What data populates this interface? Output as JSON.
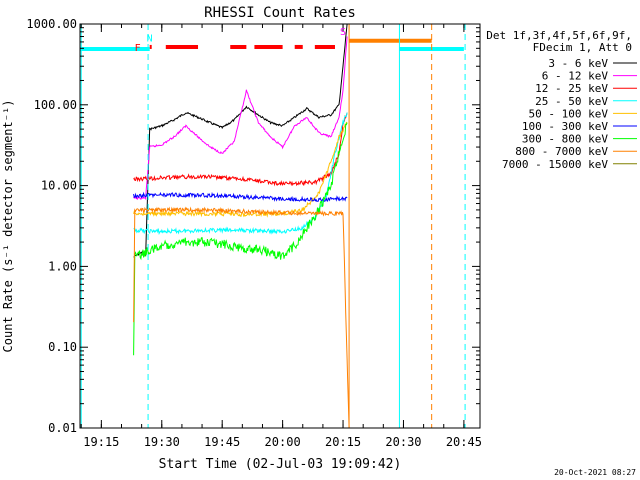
{
  "chart_data": {
    "type": "line",
    "title": "RHESSI Count Rates",
    "xlabel": "Start Time (02-Jul-03 19:09:42)",
    "ylabel": "Count Rate (s⁻¹ detector segment⁻¹)",
    "x_range": [
      "19:09:42",
      "20:49:00"
    ],
    "ylim": [
      0.01,
      1000
    ],
    "y_scale": "log",
    "x_tick_labels": [
      "19:15",
      "19:30",
      "19:45",
      "20:00",
      "20:15",
      "20:30",
      "20:45"
    ],
    "y_tick_labels": [
      "1000.00",
      "100.00",
      "10.00",
      "1.00",
      "0.10",
      "0.01"
    ],
    "y_tick_values": [
      1000,
      100,
      10,
      1,
      0.1,
      0.01
    ],
    "legend_header": [
      "Det 1f,3f,4f,5f,6f,9f,",
      "FDecim 1, Att 0"
    ],
    "legend_position": "right",
    "series": [
      {
        "name": "3 - 6 keV",
        "color": "#000000",
        "points": [
          [
            "19:23",
            1.3
          ],
          [
            "19:25",
            1.5
          ],
          [
            "19:26",
            1.4
          ],
          [
            "19:27",
            50
          ],
          [
            "19:30",
            55
          ],
          [
            "19:33",
            65
          ],
          [
            "19:36",
            80
          ],
          [
            "19:39",
            70
          ],
          [
            "19:42",
            60
          ],
          [
            "19:45",
            52
          ],
          [
            "19:48",
            65
          ],
          [
            "19:51",
            95
          ],
          [
            "19:54",
            75
          ],
          [
            "19:57",
            60
          ],
          [
            "20:00",
            55
          ],
          [
            "20:03",
            70
          ],
          [
            "20:06",
            90
          ],
          [
            "20:09",
            70
          ],
          [
            "20:12",
            75
          ],
          [
            "20:14",
            100
          ],
          [
            "20:15",
            300
          ],
          [
            "20:16",
            1000
          ]
        ]
      },
      {
        "name": "6 - 12 keV",
        "color": "#ff00ff",
        "points": [
          [
            "19:23",
            7
          ],
          [
            "19:26",
            7
          ],
          [
            "19:27",
            30
          ],
          [
            "19:30",
            32
          ],
          [
            "19:33",
            40
          ],
          [
            "19:36",
            55
          ],
          [
            "19:39",
            40
          ],
          [
            "19:42",
            30
          ],
          [
            "19:45",
            25
          ],
          [
            "19:48",
            35
          ],
          [
            "19:51",
            150
          ],
          [
            "19:54",
            60
          ],
          [
            "19:57",
            40
          ],
          [
            "20:00",
            30
          ],
          [
            "20:03",
            55
          ],
          [
            "20:06",
            70
          ],
          [
            "20:09",
            45
          ],
          [
            "20:12",
            40
          ],
          [
            "20:14",
            70
          ],
          [
            "20:15",
            150
          ],
          [
            "20:16",
            700
          ]
        ]
      },
      {
        "name": "12 - 25 keV",
        "color": "#ff0000",
        "points": [
          [
            "19:23",
            12
          ],
          [
            "19:30",
            12.5
          ],
          [
            "19:40",
            13
          ],
          [
            "19:50",
            12
          ],
          [
            "20:00",
            10.5
          ],
          [
            "20:08",
            11
          ],
          [
            "20:12",
            14
          ],
          [
            "20:14",
            25
          ],
          [
            "20:15",
            60
          ],
          [
            "20:16",
            80
          ]
        ]
      },
      {
        "name": "25 - 50 keV",
        "color": "#00ffff",
        "points": [
          [
            "19:23",
            2.8
          ],
          [
            "19:30",
            2.7
          ],
          [
            "19:40",
            2.8
          ],
          [
            "19:50",
            2.8
          ],
          [
            "20:00",
            2.7
          ],
          [
            "20:05",
            3
          ],
          [
            "20:08",
            4
          ],
          [
            "20:11",
            8
          ],
          [
            "20:13",
            25
          ],
          [
            "20:15",
            60
          ],
          [
            "20:16",
            80
          ]
        ]
      },
      {
        "name": "50 - 100 keV",
        "color": "#ffc000",
        "points": [
          [
            "19:23",
            4.5
          ],
          [
            "19:30",
            4.5
          ],
          [
            "19:40",
            4.5
          ],
          [
            "19:50",
            4.4
          ],
          [
            "20:00",
            4.5
          ],
          [
            "20:05",
            5
          ],
          [
            "20:09",
            8
          ],
          [
            "20:12",
            20
          ],
          [
            "20:14",
            40
          ],
          [
            "20:16",
            60
          ]
        ]
      },
      {
        "name": "100 - 300 keV",
        "color": "#0000ff",
        "points": [
          [
            "19:23",
            7.5
          ],
          [
            "19:30",
            7.7
          ],
          [
            "19:40",
            7.6
          ],
          [
            "19:50",
            7.3
          ],
          [
            "20:00",
            6.8
          ],
          [
            "20:10",
            6.7
          ],
          [
            "20:16",
            7
          ]
        ]
      },
      {
        "name": "300 - 800 keV",
        "color": "#00ff00",
        "points": [
          [
            "19:23",
            0.08
          ],
          [
            "19:23.3",
            1.3
          ],
          [
            "19:26",
            1.5
          ],
          [
            "19:30",
            1.8
          ],
          [
            "19:35",
            2
          ],
          [
            "19:40",
            2
          ],
          [
            "19:45",
            1.9
          ],
          [
            "19:50",
            1.7
          ],
          [
            "19:55",
            1.6
          ],
          [
            "20:00",
            1.3
          ],
          [
            "20:03",
            1.8
          ],
          [
            "20:06",
            3
          ],
          [
            "20:09",
            5
          ],
          [
            "20:12",
            10
          ],
          [
            "20:14",
            25
          ],
          [
            "20:16",
            60
          ]
        ]
      },
      {
        "name": "800 - 7000 keV",
        "color": "#ff8000",
        "points": [
          [
            "19:23",
            0.2
          ],
          [
            "19:23.3",
            5
          ],
          [
            "19:30",
            5
          ],
          [
            "19:40",
            5
          ],
          [
            "19:50",
            4.8
          ],
          [
            "20:00",
            4.6
          ],
          [
            "20:10",
            4.5
          ],
          [
            "20:15",
            4.5
          ],
          [
            "20:16",
            0.07
          ],
          [
            "20:16.5",
            0.01
          ]
        ]
      },
      {
        "name": "7000 - 15000 keV",
        "color": "#808000",
        "points": []
      }
    ],
    "annotations": [
      {
        "text": "F",
        "time": "19:24",
        "y": 520,
        "color": "#ff0000"
      },
      {
        "text": "N",
        "time": "19:27",
        "y": 680,
        "color": "#00ffff"
      },
      {
        "text": "S",
        "time": "20:15",
        "y": 820,
        "color": "#ff00ff"
      }
    ],
    "flag_bars": [
      {
        "kind": "flare",
        "color": "#ff0000",
        "y": 520,
        "segments": [
          [
            "19:27",
            "19:27.5"
          ],
          [
            "19:31",
            "19:39"
          ],
          [
            "19:47",
            "19:51"
          ],
          [
            "19:53",
            "20:00"
          ],
          [
            "20:03",
            "20:05"
          ],
          [
            "20:08",
            "20:13"
          ]
        ]
      },
      {
        "kind": "night",
        "color": "#00ffff",
        "y": 490,
        "segments": [
          [
            "19:09:42",
            "19:27"
          ],
          [
            "20:29",
            "20:45"
          ]
        ]
      },
      {
        "kind": "saa",
        "color": "#ff8000",
        "y": 620,
        "segments": [
          [
            "20:16.5",
            "20:37"
          ]
        ]
      }
    ],
    "vlines": [
      {
        "time": "19:10",
        "color": "#00ffff",
        "style": "solid"
      },
      {
        "time": "19:26.6",
        "color": "#00ffff",
        "style": "dashed"
      },
      {
        "time": "20:16.5",
        "color": "#ff8000",
        "style": "solid"
      },
      {
        "time": "20:29",
        "color": "#00ffff",
        "style": "solid"
      },
      {
        "time": "20:37",
        "color": "#ff8000",
        "style": "dashed"
      },
      {
        "time": "20:45.3",
        "color": "#00ffff",
        "style": "dashed"
      }
    ]
  },
  "footer": {
    "timestamp": "20-Oct-2021 08:27"
  }
}
